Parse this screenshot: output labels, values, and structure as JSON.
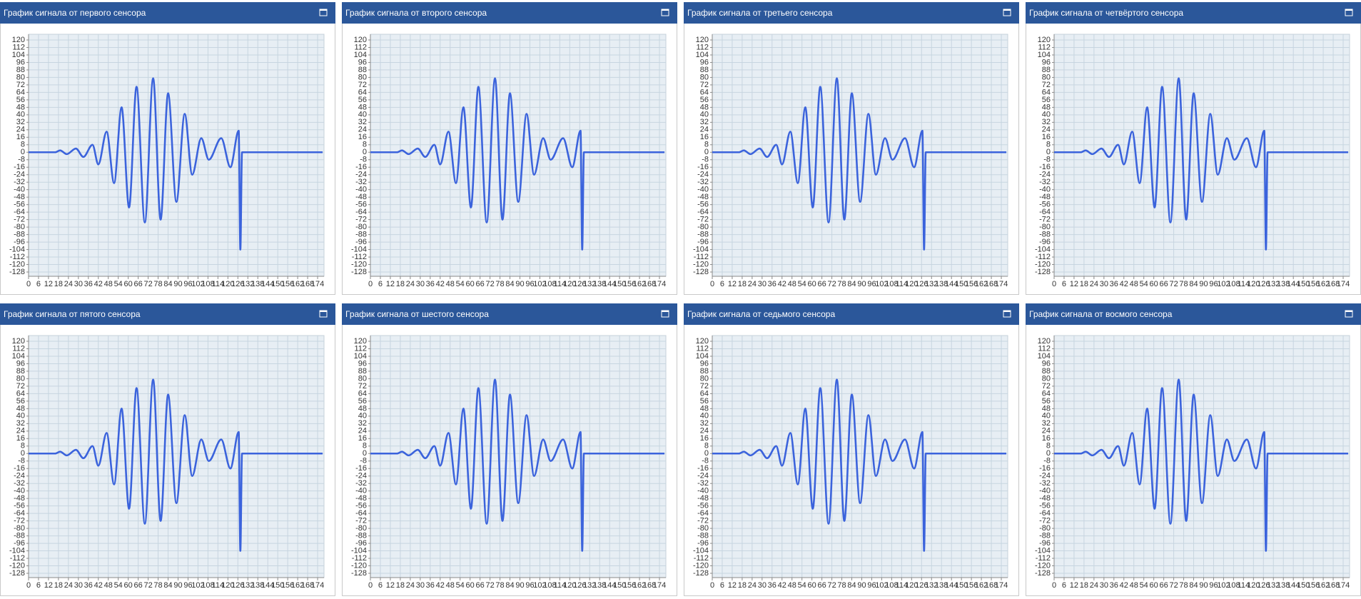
{
  "chart_data": [
    {
      "type": "line",
      "title": "График сигнала от первого сенсора",
      "color": "#3b63dc",
      "grid": true,
      "xlim": [
        0,
        177
      ],
      "ylim": [
        -128,
        120
      ],
      "xticks": [
        0,
        6,
        12,
        18,
        24,
        30,
        36,
        42,
        48,
        54,
        60,
        66,
        72,
        78,
        84,
        90,
        96,
        102,
        108,
        114,
        120,
        126,
        132,
        138,
        144,
        150,
        156,
        162,
        168,
        174
      ],
      "yticks": [
        -128,
        -120,
        -112,
        -104,
        -96,
        -88,
        -80,
        -72,
        -64,
        -56,
        -48,
        -40,
        -32,
        -24,
        -16,
        -8,
        0,
        8,
        16,
        24,
        32,
        40,
        48,
        56,
        64,
        72,
        80,
        88,
        96,
        104,
        112,
        120
      ],
      "x": [
        0,
        16,
        19,
        23,
        28.5,
        33,
        38.5,
        42,
        47,
        51.5,
        56,
        60.5,
        65,
        70,
        75,
        79.5,
        84,
        89,
        94,
        98.5,
        104,
        108.5,
        116,
        121.5,
        126.5,
        127.5,
        128.5,
        177
      ],
      "values": [
        0,
        0,
        2,
        -2,
        4,
        -5,
        8,
        -13,
        22,
        -33,
        48,
        -59,
        70,
        -75,
        79,
        -72,
        63,
        -53,
        41,
        -24,
        15,
        -8,
        15,
        -16,
        23,
        -104,
        0,
        0
      ]
    },
    {
      "type": "line",
      "title": "График сигнала от второго сенсора",
      "color": "#3b63dc",
      "grid": true,
      "xlim": [
        0,
        177
      ],
      "ylim": [
        -128,
        120
      ],
      "xticks": [
        0,
        6,
        12,
        18,
        24,
        30,
        36,
        42,
        48,
        54,
        60,
        66,
        72,
        78,
        84,
        90,
        96,
        102,
        108,
        114,
        120,
        126,
        132,
        138,
        144,
        150,
        156,
        162,
        168,
        174
      ],
      "yticks": [
        -128,
        -120,
        -112,
        -104,
        -96,
        -88,
        -80,
        -72,
        -64,
        -56,
        -48,
        -40,
        -32,
        -24,
        -16,
        -8,
        0,
        8,
        16,
        24,
        32,
        40,
        48,
        56,
        64,
        72,
        80,
        88,
        96,
        104,
        112,
        120
      ],
      "x": [
        0,
        16,
        19,
        23,
        28.5,
        33,
        38.5,
        42,
        47,
        51.5,
        56,
        60.5,
        65,
        70,
        75,
        79.5,
        84,
        89,
        94,
        98.5,
        104,
        108.5,
        116,
        121.5,
        126.5,
        127.5,
        128.5,
        177
      ],
      "values": [
        0,
        0,
        2,
        -2,
        4,
        -5,
        8,
        -13,
        22,
        -33,
        48,
        -59,
        70,
        -75,
        79,
        -72,
        63,
        -53,
        41,
        -24,
        15,
        -8,
        15,
        -16,
        23,
        -104,
        0,
        0
      ]
    },
    {
      "type": "line",
      "title": "График сигнала от третьего сенсора",
      "color": "#3b63dc",
      "grid": true,
      "xlim": [
        0,
        177
      ],
      "ylim": [
        -128,
        120
      ],
      "xticks": [
        0,
        6,
        12,
        18,
        24,
        30,
        36,
        42,
        48,
        54,
        60,
        66,
        72,
        78,
        84,
        90,
        96,
        102,
        108,
        114,
        120,
        126,
        132,
        138,
        144,
        150,
        156,
        162,
        168,
        174
      ],
      "yticks": [
        -128,
        -120,
        -112,
        -104,
        -96,
        -88,
        -80,
        -72,
        -64,
        -56,
        -48,
        -40,
        -32,
        -24,
        -16,
        -8,
        0,
        8,
        16,
        24,
        32,
        40,
        48,
        56,
        64,
        72,
        80,
        88,
        96,
        104,
        112,
        120
      ],
      "x": [
        0,
        16,
        19,
        23,
        28.5,
        33,
        38.5,
        42,
        47,
        51.5,
        56,
        60.5,
        65,
        70,
        75,
        79.5,
        84,
        89,
        94,
        98.5,
        104,
        108.5,
        116,
        121.5,
        126.5,
        127.5,
        128.5,
        177
      ],
      "values": [
        0,
        0,
        2,
        -2,
        4,
        -5,
        8,
        -13,
        22,
        -33,
        48,
        -59,
        70,
        -75,
        79,
        -72,
        63,
        -53,
        41,
        -24,
        15,
        -8,
        15,
        -16,
        23,
        -104,
        0,
        0
      ]
    },
    {
      "type": "line",
      "title": "График сигнала от четвёртого сенсора",
      "color": "#3b63dc",
      "grid": true,
      "xlim": [
        0,
        177
      ],
      "ylim": [
        -128,
        120
      ],
      "xticks": [
        0,
        6,
        12,
        18,
        24,
        30,
        36,
        42,
        48,
        54,
        60,
        66,
        72,
        78,
        84,
        90,
        96,
        102,
        108,
        114,
        120,
        126,
        132,
        138,
        144,
        150,
        156,
        162,
        168,
        174
      ],
      "yticks": [
        -128,
        -120,
        -112,
        -104,
        -96,
        -88,
        -80,
        -72,
        -64,
        -56,
        -48,
        -40,
        -32,
        -24,
        -16,
        -8,
        0,
        8,
        16,
        24,
        32,
        40,
        48,
        56,
        64,
        72,
        80,
        88,
        96,
        104,
        112,
        120
      ],
      "x": [
        0,
        16,
        19,
        23,
        28.5,
        33,
        38.5,
        42,
        47,
        51.5,
        56,
        60.5,
        65,
        70,
        75,
        79.5,
        84,
        89,
        94,
        98.5,
        104,
        108.5,
        116,
        121.5,
        126.5,
        127.5,
        128.5,
        177
      ],
      "values": [
        0,
        0,
        2,
        -2,
        4,
        -5,
        8,
        -13,
        22,
        -33,
        48,
        -59,
        70,
        -75,
        79,
        -72,
        63,
        -53,
        41,
        -24,
        15,
        -8,
        15,
        -16,
        23,
        -104,
        0,
        0
      ]
    },
    {
      "type": "line",
      "title": "График сигнала от пятого сенсора",
      "color": "#3b63dc",
      "grid": true,
      "xlim": [
        0,
        177
      ],
      "ylim": [
        -128,
        120
      ],
      "xticks": [
        0,
        6,
        12,
        18,
        24,
        30,
        36,
        42,
        48,
        54,
        60,
        66,
        72,
        78,
        84,
        90,
        96,
        102,
        108,
        114,
        120,
        126,
        132,
        138,
        144,
        150,
        156,
        162,
        168,
        174
      ],
      "yticks": [
        -128,
        -120,
        -112,
        -104,
        -96,
        -88,
        -80,
        -72,
        -64,
        -56,
        -48,
        -40,
        -32,
        -24,
        -16,
        -8,
        0,
        8,
        16,
        24,
        32,
        40,
        48,
        56,
        64,
        72,
        80,
        88,
        96,
        104,
        112,
        120
      ],
      "x": [
        0,
        16,
        19,
        23,
        28.5,
        33,
        38.5,
        42,
        47,
        51.5,
        56,
        60.5,
        65,
        70,
        75,
        79.5,
        84,
        89,
        94,
        98.5,
        104,
        108.5,
        116,
        121.5,
        126.5,
        127.5,
        128.5,
        177
      ],
      "values": [
        0,
        0,
        2,
        -2,
        4,
        -5,
        8,
        -13,
        22,
        -33,
        48,
        -59,
        70,
        -75,
        79,
        -72,
        63,
        -53,
        41,
        -24,
        15,
        -8,
        15,
        -16,
        23,
        -104,
        0,
        0
      ]
    },
    {
      "type": "line",
      "title": "График сигнала от шестого сенсора",
      "color": "#3b63dc",
      "grid": true,
      "xlim": [
        0,
        177
      ],
      "ylim": [
        -128,
        120
      ],
      "xticks": [
        0,
        6,
        12,
        18,
        24,
        30,
        36,
        42,
        48,
        54,
        60,
        66,
        72,
        78,
        84,
        90,
        96,
        102,
        108,
        114,
        120,
        126,
        132,
        138,
        144,
        150,
        156,
        162,
        168,
        174
      ],
      "yticks": [
        -128,
        -120,
        -112,
        -104,
        -96,
        -88,
        -80,
        -72,
        -64,
        -56,
        -48,
        -40,
        -32,
        -24,
        -16,
        -8,
        0,
        8,
        16,
        24,
        32,
        40,
        48,
        56,
        64,
        72,
        80,
        88,
        96,
        104,
        112,
        120
      ],
      "x": [
        0,
        16,
        19,
        23,
        28.5,
        33,
        38.5,
        42,
        47,
        51.5,
        56,
        60.5,
        65,
        70,
        75,
        79.5,
        84,
        89,
        94,
        98.5,
        104,
        108.5,
        116,
        121.5,
        126.5,
        127.5,
        128.5,
        177
      ],
      "values": [
        0,
        0,
        2,
        -2,
        4,
        -5,
        8,
        -13,
        22,
        -33,
        48,
        -59,
        70,
        -75,
        79,
        -72,
        63,
        -53,
        41,
        -24,
        15,
        -8,
        15,
        -16,
        23,
        -104,
        0,
        0
      ]
    },
    {
      "type": "line",
      "title": "График сигнала от седьмого сенсора",
      "color": "#3b63dc",
      "grid": true,
      "xlim": [
        0,
        177
      ],
      "ylim": [
        -128,
        120
      ],
      "xticks": [
        0,
        6,
        12,
        18,
        24,
        30,
        36,
        42,
        48,
        54,
        60,
        66,
        72,
        78,
        84,
        90,
        96,
        102,
        108,
        114,
        120,
        126,
        132,
        138,
        144,
        150,
        156,
        162,
        168,
        174
      ],
      "yticks": [
        -128,
        -120,
        -112,
        -104,
        -96,
        -88,
        -80,
        -72,
        -64,
        -56,
        -48,
        -40,
        -32,
        -24,
        -16,
        -8,
        0,
        8,
        16,
        24,
        32,
        40,
        48,
        56,
        64,
        72,
        80,
        88,
        96,
        104,
        112,
        120
      ],
      "x": [
        0,
        16,
        19,
        23,
        28.5,
        33,
        38.5,
        42,
        47,
        51.5,
        56,
        60.5,
        65,
        70,
        75,
        79.5,
        84,
        89,
        94,
        98.5,
        104,
        108.5,
        116,
        121.5,
        126.5,
        127.5,
        128.5,
        177
      ],
      "values": [
        0,
        0,
        2,
        -2,
        4,
        -5,
        8,
        -13,
        22,
        -33,
        48,
        -59,
        70,
        -75,
        79,
        -72,
        63,
        -53,
        41,
        -24,
        15,
        -8,
        15,
        -16,
        23,
        -104,
        0,
        0
      ]
    },
    {
      "type": "line",
      "title": "График сигнала от восмого сенсора",
      "color": "#3b63dc",
      "grid": true,
      "xlim": [
        0,
        177
      ],
      "ylim": [
        -128,
        120
      ],
      "xticks": [
        0,
        6,
        12,
        18,
        24,
        30,
        36,
        42,
        48,
        54,
        60,
        66,
        72,
        78,
        84,
        90,
        96,
        102,
        108,
        114,
        120,
        126,
        132,
        138,
        144,
        150,
        156,
        162,
        168,
        174
      ],
      "yticks": [
        -128,
        -120,
        -112,
        -104,
        -96,
        -88,
        -80,
        -72,
        -64,
        -56,
        -48,
        -40,
        -32,
        -24,
        -16,
        -8,
        0,
        8,
        16,
        24,
        32,
        40,
        48,
        56,
        64,
        72,
        80,
        88,
        96,
        104,
        112,
        120
      ],
      "x": [
        0,
        16,
        19,
        23,
        28.5,
        33,
        38.5,
        42,
        47,
        51.5,
        56,
        60.5,
        65,
        70,
        75,
        79.5,
        84,
        89,
        94,
        98.5,
        104,
        108.5,
        116,
        121.5,
        126.5,
        127.5,
        128.5,
        177
      ],
      "values": [
        0,
        0,
        2,
        -2,
        4,
        -5,
        8,
        -13,
        22,
        -33,
        48,
        -59,
        70,
        -75,
        79,
        -72,
        63,
        -53,
        41,
        -24,
        15,
        -8,
        15,
        -16,
        23,
        -104,
        0,
        0
      ]
    }
  ]
}
